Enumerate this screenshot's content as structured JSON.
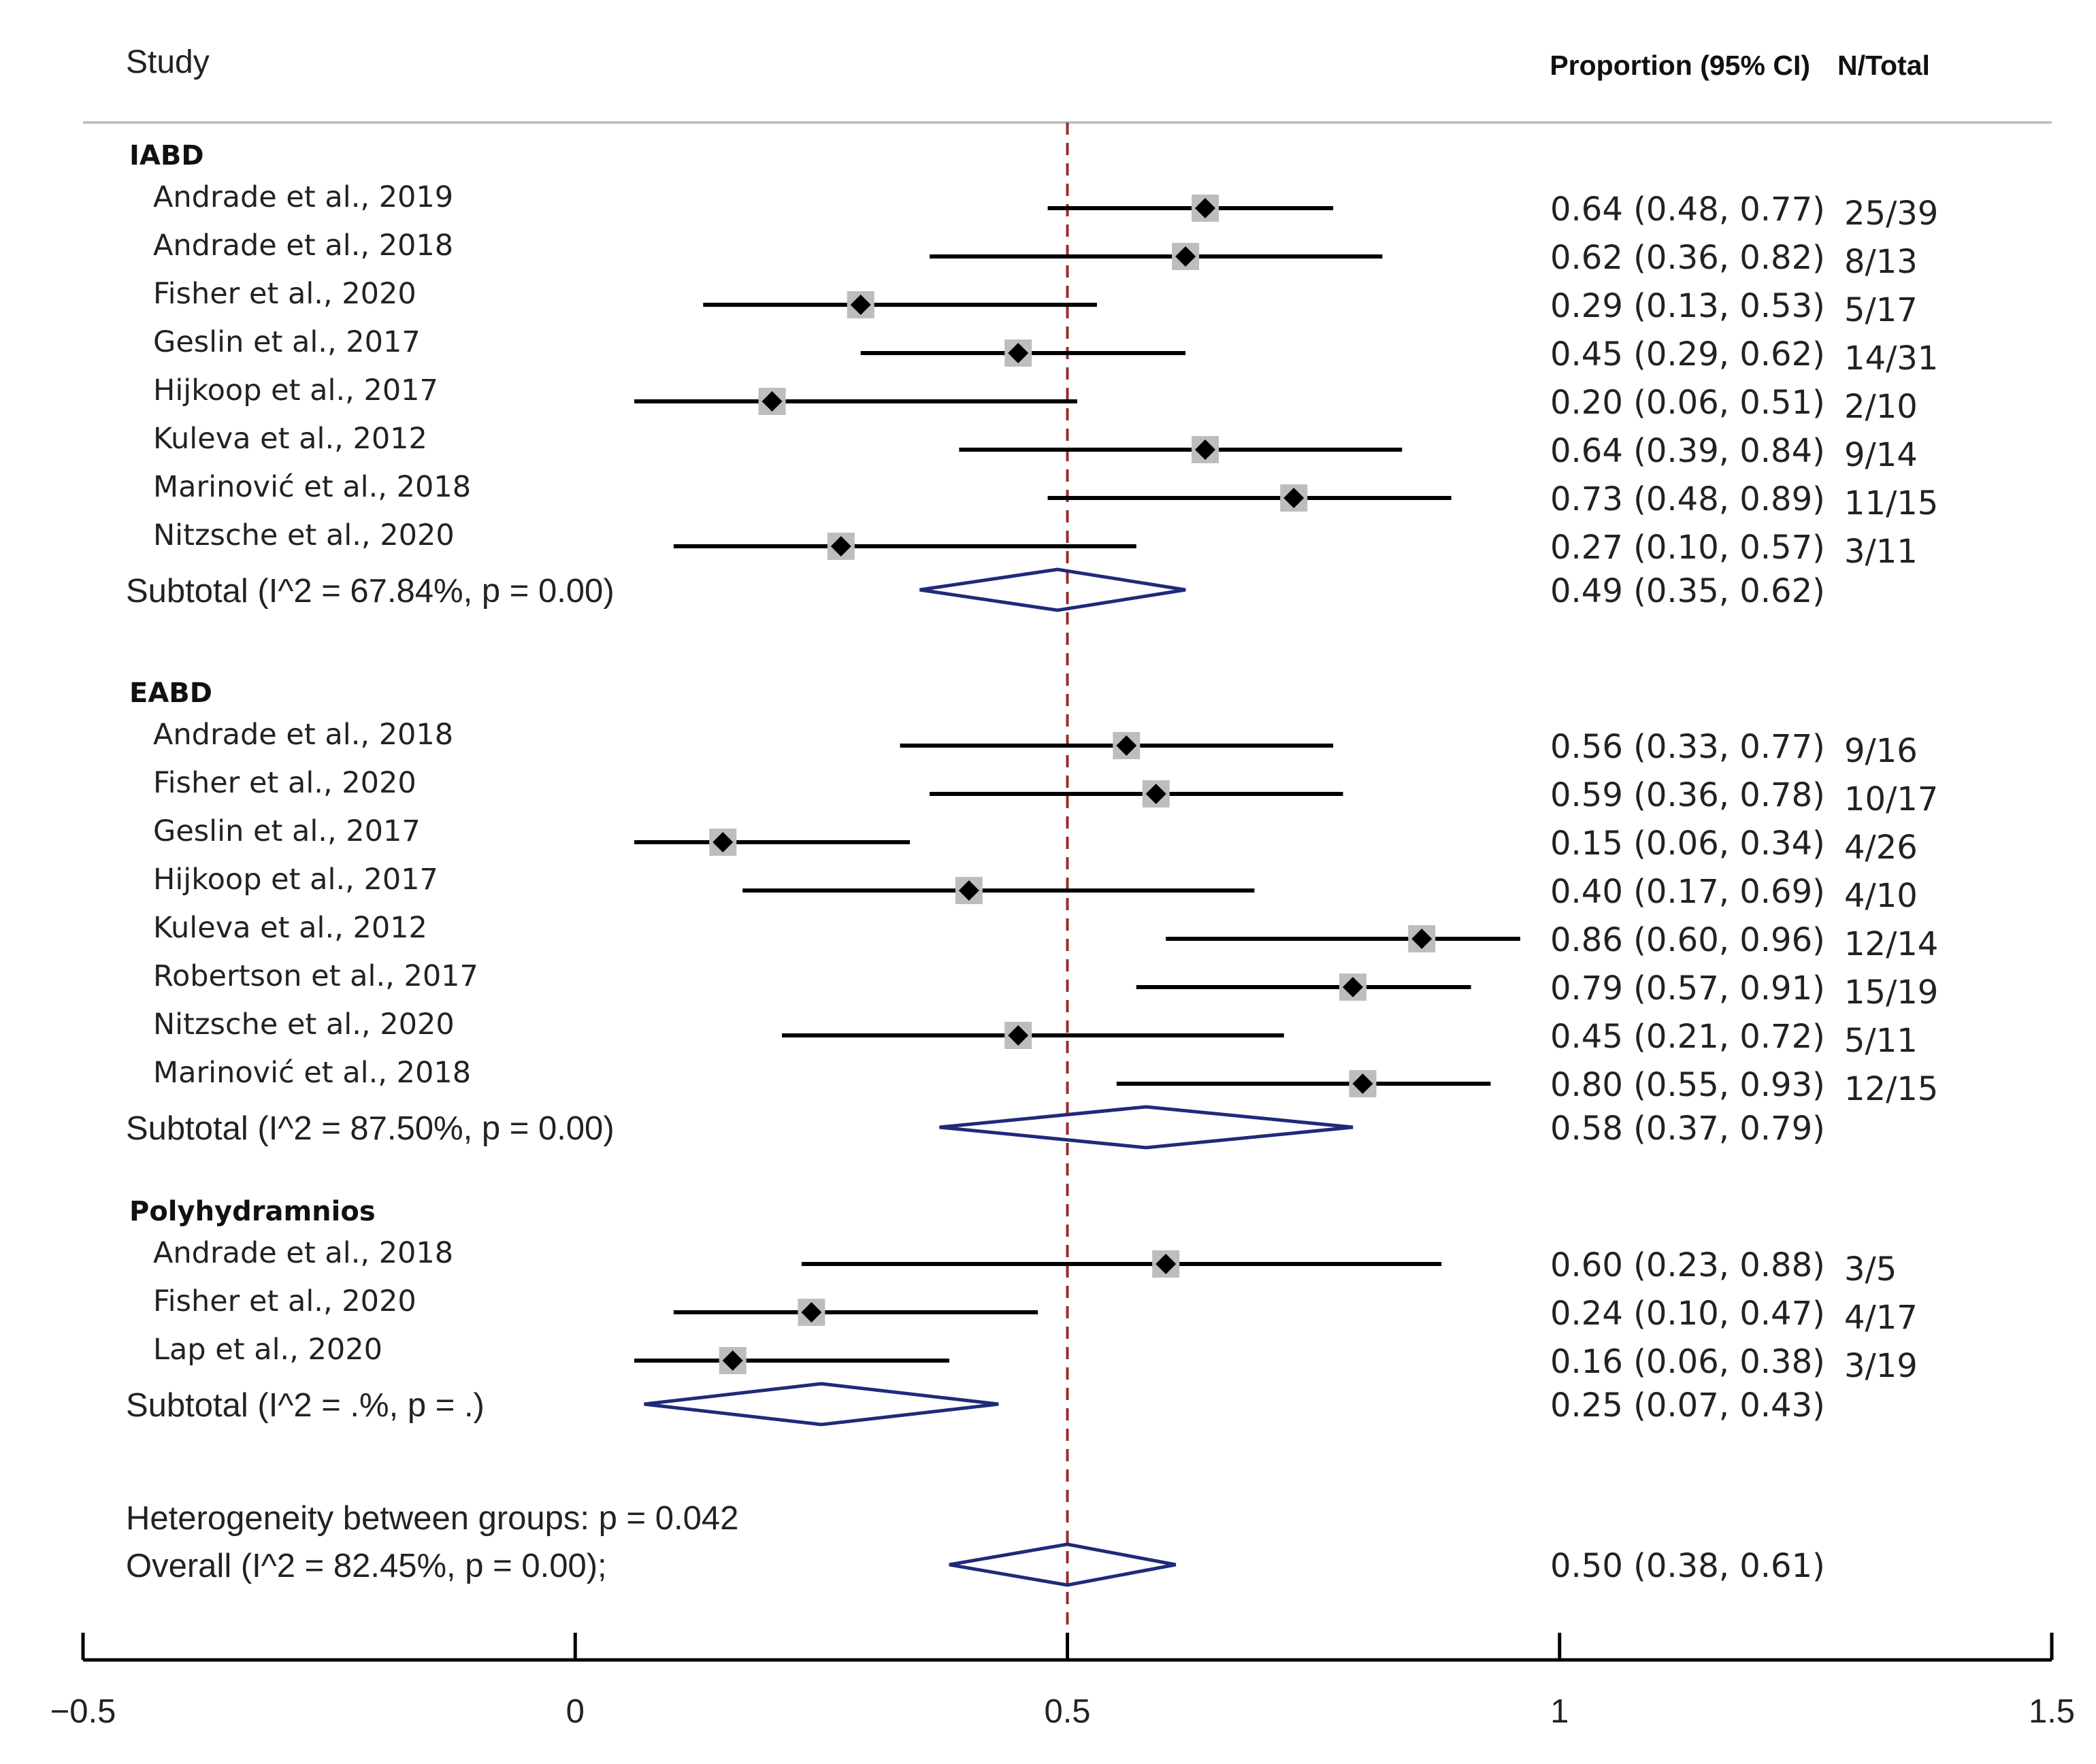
{
  "chart_data": {
    "type": "forest",
    "header": {
      "study": "Study",
      "estimate": "Proportion (95% CI)",
      "n_total": "N/Total"
    },
    "x_axis": {
      "range": [
        -0.5,
        1.5
      ],
      "ticks": [
        -0.5,
        0,
        0.5,
        1,
        1.5
      ],
      "tick_labels": [
        "−0.5",
        "0",
        "0.5",
        "1",
        "1.5"
      ],
      "reference_line": 0.5
    },
    "groups": [
      {
        "name": "IABD",
        "studies": [
          {
            "label": "Andrade et al., 2019",
            "est": 0.64,
            "lo": 0.48,
            "hi": 0.77,
            "ci_text": "0.64 (0.48, 0.77)",
            "n": "25/39"
          },
          {
            "label": "Andrade et al., 2018",
            "est": 0.62,
            "lo": 0.36,
            "hi": 0.82,
            "ci_text": "0.62 (0.36, 0.82)",
            "n": "8/13"
          },
          {
            "label": "Fisher et al., 2020",
            "est": 0.29,
            "lo": 0.13,
            "hi": 0.53,
            "ci_text": "0.29 (0.13, 0.53)",
            "n": "5/17"
          },
          {
            "label": "Geslin et al., 2017",
            "est": 0.45,
            "lo": 0.29,
            "hi": 0.62,
            "ci_text": "0.45 (0.29, 0.62)",
            "n": "14/31"
          },
          {
            "label": "Hijkoop et al., 2017",
            "est": 0.2,
            "lo": 0.06,
            "hi": 0.51,
            "ci_text": "0.20 (0.06, 0.51)",
            "n": "2/10"
          },
          {
            "label": "Kuleva et al., 2012",
            "est": 0.64,
            "lo": 0.39,
            "hi": 0.84,
            "ci_text": "0.64 (0.39, 0.84)",
            "n": "9/14"
          },
          {
            "label": "Marinović et al., 2018",
            "est": 0.73,
            "lo": 0.48,
            "hi": 0.89,
            "ci_text": "0.73 (0.48, 0.89)",
            "n": "11/15"
          },
          {
            "label": "Nitzsche et al., 2020",
            "est": 0.27,
            "lo": 0.1,
            "hi": 0.57,
            "ci_text": "0.27 (0.10, 0.57)",
            "n": "3/11"
          }
        ],
        "subtotal": {
          "label": "Subtotal  (I^2 = 67.84%, p = 0.00)",
          "est": 0.49,
          "lo": 0.35,
          "hi": 0.62,
          "ci_text": "0.49 (0.35, 0.62)"
        }
      },
      {
        "name": "EABD",
        "studies": [
          {
            "label": "Andrade et al., 2018",
            "est": 0.56,
            "lo": 0.33,
            "hi": 0.77,
            "ci_text": "0.56 (0.33, 0.77)",
            "n": "9/16"
          },
          {
            "label": "Fisher et al., 2020",
            "est": 0.59,
            "lo": 0.36,
            "hi": 0.78,
            "ci_text": "0.59 (0.36, 0.78)",
            "n": "10/17"
          },
          {
            "label": "Geslin et al., 2017",
            "est": 0.15,
            "lo": 0.06,
            "hi": 0.34,
            "ci_text": "0.15 (0.06, 0.34)",
            "n": "4/26"
          },
          {
            "label": "Hijkoop et al., 2017",
            "est": 0.4,
            "lo": 0.17,
            "hi": 0.69,
            "ci_text": "0.40 (0.17, 0.69)",
            "n": "4/10"
          },
          {
            "label": "Kuleva et al., 2012",
            "est": 0.86,
            "lo": 0.6,
            "hi": 0.96,
            "ci_text": "0.86 (0.60, 0.96)",
            "n": "12/14"
          },
          {
            "label": "Robertson et al., 2017",
            "est": 0.79,
            "lo": 0.57,
            "hi": 0.91,
            "ci_text": "0.79 (0.57, 0.91)",
            "n": "15/19"
          },
          {
            "label": "Nitzsche et al., 2020",
            "est": 0.45,
            "lo": 0.21,
            "hi": 0.72,
            "ci_text": "0.45 (0.21, 0.72)",
            "n": "5/11"
          },
          {
            "label": "Marinović et al., 2018",
            "est": 0.8,
            "lo": 0.55,
            "hi": 0.93,
            "ci_text": "0.80 (0.55, 0.93)",
            "n": "12/15"
          }
        ],
        "subtotal": {
          "label": "Subtotal  (I^2 = 87.50%, p = 0.00)",
          "est": 0.58,
          "lo": 0.37,
          "hi": 0.79,
          "ci_text": "0.58 (0.37, 0.79)"
        }
      },
      {
        "name": "Polyhydramnios",
        "studies": [
          {
            "label": "Andrade et al., 2018",
            "est": 0.6,
            "lo": 0.23,
            "hi": 0.88,
            "ci_text": "0.60 (0.23, 0.88)",
            "n": "3/5"
          },
          {
            "label": "Fisher et al., 2020",
            "est": 0.24,
            "lo": 0.1,
            "hi": 0.47,
            "ci_text": "0.24 (0.10, 0.47)",
            "n": "4/17"
          },
          {
            "label": "Lap et al., 2020",
            "est": 0.16,
            "lo": 0.06,
            "hi": 0.38,
            "ci_text": "0.16 (0.06, 0.38)",
            "n": "3/19"
          }
        ],
        "subtotal": {
          "label": "Subtotal  (I^2 = .%, p = .)",
          "est": 0.25,
          "lo": 0.07,
          "hi": 0.43,
          "ci_text": "0.25 (0.07, 0.43)"
        }
      }
    ],
    "heterogeneity": "Heterogeneity between groups: p = 0.042",
    "overall": {
      "label": "Overall  (I^2 = 82.45%, p = 0.00);",
      "est": 0.5,
      "lo": 0.38,
      "hi": 0.61,
      "ci_text": "0.50 (0.38, 0.61)"
    },
    "colors": {
      "ci_line": "#000000",
      "marker": "#000000",
      "weight_box": "#bdbdbd",
      "diamond": "#1f2a7a",
      "reference_line": "#9b2b2b",
      "axis": "#000000",
      "text": "#222222"
    }
  }
}
